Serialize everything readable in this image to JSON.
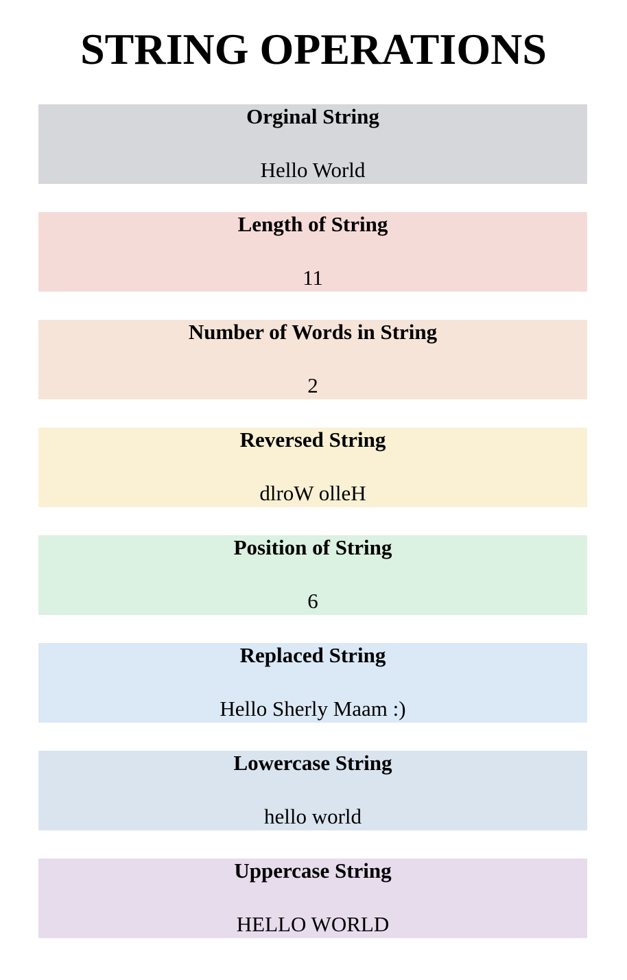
{
  "title": "STRING OPERATIONS",
  "cards": [
    {
      "heading": "Orginal String",
      "value": "Hello World",
      "color": "#d6d7da"
    },
    {
      "heading": "Length of String",
      "value": "11",
      "color": "#f5dbd8"
    },
    {
      "heading": "Number of Words in String",
      "value": "2",
      "color": "#f6e4d8"
    },
    {
      "heading": "Reversed String",
      "value": "dlroW olleH",
      "color": "#faf1d4"
    },
    {
      "heading": "Position of String",
      "value": "6",
      "color": "#dbf1e1"
    },
    {
      "heading": "Replaced String",
      "value": "Hello Sherly Maam :)",
      "color": "#dbe8f5"
    },
    {
      "heading": "Lowercase String",
      "value": "hello world",
      "color": "#d9e4ef"
    },
    {
      "heading": "Uppercase String",
      "value": "HELLO WORLD",
      "color": "#e7dcec"
    }
  ]
}
